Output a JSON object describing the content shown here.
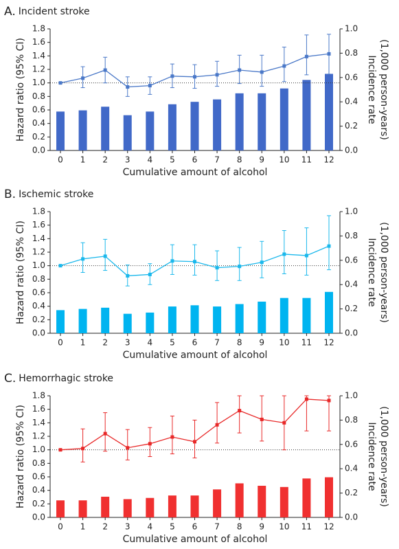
{
  "chart_data": [
    {
      "type": "combo",
      "panel": "A.",
      "title": "Incident stroke",
      "xlabel": "Cumulative amount of alcohol",
      "ylabel": "Hazard ratio (95% CI)",
      "y2label": [
        "Incidence rate",
        "(1,000 person-years)"
      ],
      "categories": [
        "0",
        "1",
        "2",
        "3",
        "4",
        "5",
        "6",
        "7",
        "8",
        "9",
        "10",
        "11",
        "12"
      ],
      "ylim": [
        0,
        1.8
      ],
      "yticks": [
        {
          "value": 0,
          "label": "0.0"
        },
        0.2,
        0.4,
        0.6,
        0.8,
        {
          "value": 1,
          "label": "1.0"
        },
        1.2,
        1.4,
        1.6,
        1.8
      ],
      "y2lim": [
        0,
        1
      ],
      "y2ticks": [
        {
          "value": 0,
          "label": "0.0"
        },
        0.2,
        0.4,
        0.6,
        0.8,
        {
          "value": 1,
          "label": "1.0"
        }
      ],
      "ref_line": 1,
      "series": [
        {
          "type": "bar",
          "axis": "y2",
          "color": "#4169c8",
          "values": [
            0.32,
            0.33,
            0.36,
            0.29,
            0.32,
            0.38,
            0.4,
            0.42,
            0.47,
            0.47,
            0.51,
            0.58,
            0.63
          ]
        },
        {
          "type": "line",
          "axis": "y",
          "color": "#4a78c8",
          "values": [
            1.0,
            1.07,
            1.19,
            0.94,
            0.96,
            1.1,
            1.09,
            1.12,
            1.19,
            1.16,
            1.25,
            1.39,
            1.43
          ],
          "ci_low": [
            null,
            0.93,
            1.0,
            0.8,
            0.83,
            0.93,
            0.92,
            0.95,
            0.99,
            0.95,
            1.02,
            1.12,
            1.13
          ],
          "ci_high": [
            null,
            1.24,
            1.38,
            1.09,
            1.09,
            1.28,
            1.27,
            1.32,
            1.41,
            1.41,
            1.53,
            1.71,
            1.72
          ]
        }
      ]
    },
    {
      "type": "combo",
      "panel": "B.",
      "title": "Ischemic stroke",
      "xlabel": "Cumulative amount of alcohol",
      "ylabel": "Hazard ratio (95% CI)",
      "y2label": [
        "Incidence rate",
        "(1,000 person-years)"
      ],
      "categories": [
        "0",
        "1",
        "2",
        "3",
        "4",
        "5",
        "6",
        "7",
        "8",
        "9",
        "10",
        "11",
        "12"
      ],
      "ylim": [
        0,
        1.8
      ],
      "yticks": [
        {
          "value": 0,
          "label": "0.0"
        },
        0.2,
        0.4,
        0.6,
        0.8,
        {
          "value": 1,
          "label": "1.0"
        },
        1.2,
        1.4,
        1.6,
        1.8
      ],
      "y2lim": [
        0,
        1
      ],
      "y2ticks": [
        {
          "value": 0,
          "label": "0.0"
        },
        0.2,
        0.4,
        0.6,
        0.8,
        {
          "value": 1,
          "label": "1.0"
        }
      ],
      "ref_line": 1,
      "series": [
        {
          "type": "bar",
          "axis": "y2",
          "color": "#00b4f0",
          "values": [
            0.19,
            0.2,
            0.21,
            0.16,
            0.17,
            0.22,
            0.23,
            0.22,
            0.24,
            0.26,
            0.29,
            0.29,
            0.34
          ]
        },
        {
          "type": "line",
          "axis": "y",
          "color": "#1ab8ec",
          "values": [
            1.0,
            1.1,
            1.14,
            0.85,
            0.87,
            1.07,
            1.06,
            0.97,
            0.99,
            1.05,
            1.17,
            1.15,
            1.29
          ],
          "ci_low": [
            null,
            0.9,
            0.93,
            0.7,
            0.72,
            0.87,
            0.86,
            0.78,
            0.78,
            0.82,
            0.88,
            0.86,
            0.94
          ],
          "ci_high": [
            null,
            1.34,
            1.39,
            1.01,
            1.03,
            1.31,
            1.31,
            1.22,
            1.27,
            1.36,
            1.52,
            1.56,
            1.74
          ]
        }
      ]
    },
    {
      "type": "combo",
      "panel": "C.",
      "title": "Hemorrhagic stroke",
      "xlabel": "Cumulative amount of alcohol",
      "ylabel": "Hazard ratio (95% CI)",
      "y2label": [
        "Incidence rate",
        "(1,000 person-years)"
      ],
      "categories": [
        "0",
        "1",
        "2",
        "3",
        "4",
        "5",
        "6",
        "7",
        "8",
        "9",
        "10",
        "11",
        "12"
      ],
      "ylim": [
        0,
        1.8
      ],
      "yticks": [
        {
          "value": 0,
          "label": "0.0"
        },
        0.2,
        0.4,
        0.6,
        0.8,
        {
          "value": 1,
          "label": "1.0"
        },
        1.2,
        1.4,
        1.6,
        1.8
      ],
      "y2lim": [
        0,
        1
      ],
      "y2ticks": [
        {
          "value": 0,
          "label": "0.0"
        },
        0.2,
        0.4,
        0.6,
        0.8,
        {
          "value": 1,
          "label": "1.0"
        }
      ],
      "ref_line": 1,
      "series": [
        {
          "type": "bar",
          "axis": "y2",
          "color": "#f03030",
          "values": [
            0.14,
            0.14,
            0.17,
            0.15,
            0.16,
            0.18,
            0.18,
            0.23,
            0.28,
            0.26,
            0.25,
            0.32,
            0.33
          ]
        },
        {
          "type": "line",
          "axis": "y",
          "color": "#e82828",
          "values": [
            1.0,
            1.02,
            1.24,
            1.03,
            1.09,
            1.19,
            1.12,
            1.37,
            1.58,
            1.45,
            1.4,
            1.75,
            1.73
          ],
          "ci_low": [
            null,
            0.82,
            0.98,
            0.85,
            0.9,
            0.94,
            0.88,
            1.1,
            1.25,
            1.13,
            1.0,
            1.28,
            1.28
          ],
          "ci_high": [
            null,
            1.31,
            1.55,
            1.3,
            1.33,
            1.5,
            1.44,
            1.7,
            1.8,
            1.8,
            1.8,
            1.8,
            1.8
          ]
        }
      ]
    }
  ]
}
